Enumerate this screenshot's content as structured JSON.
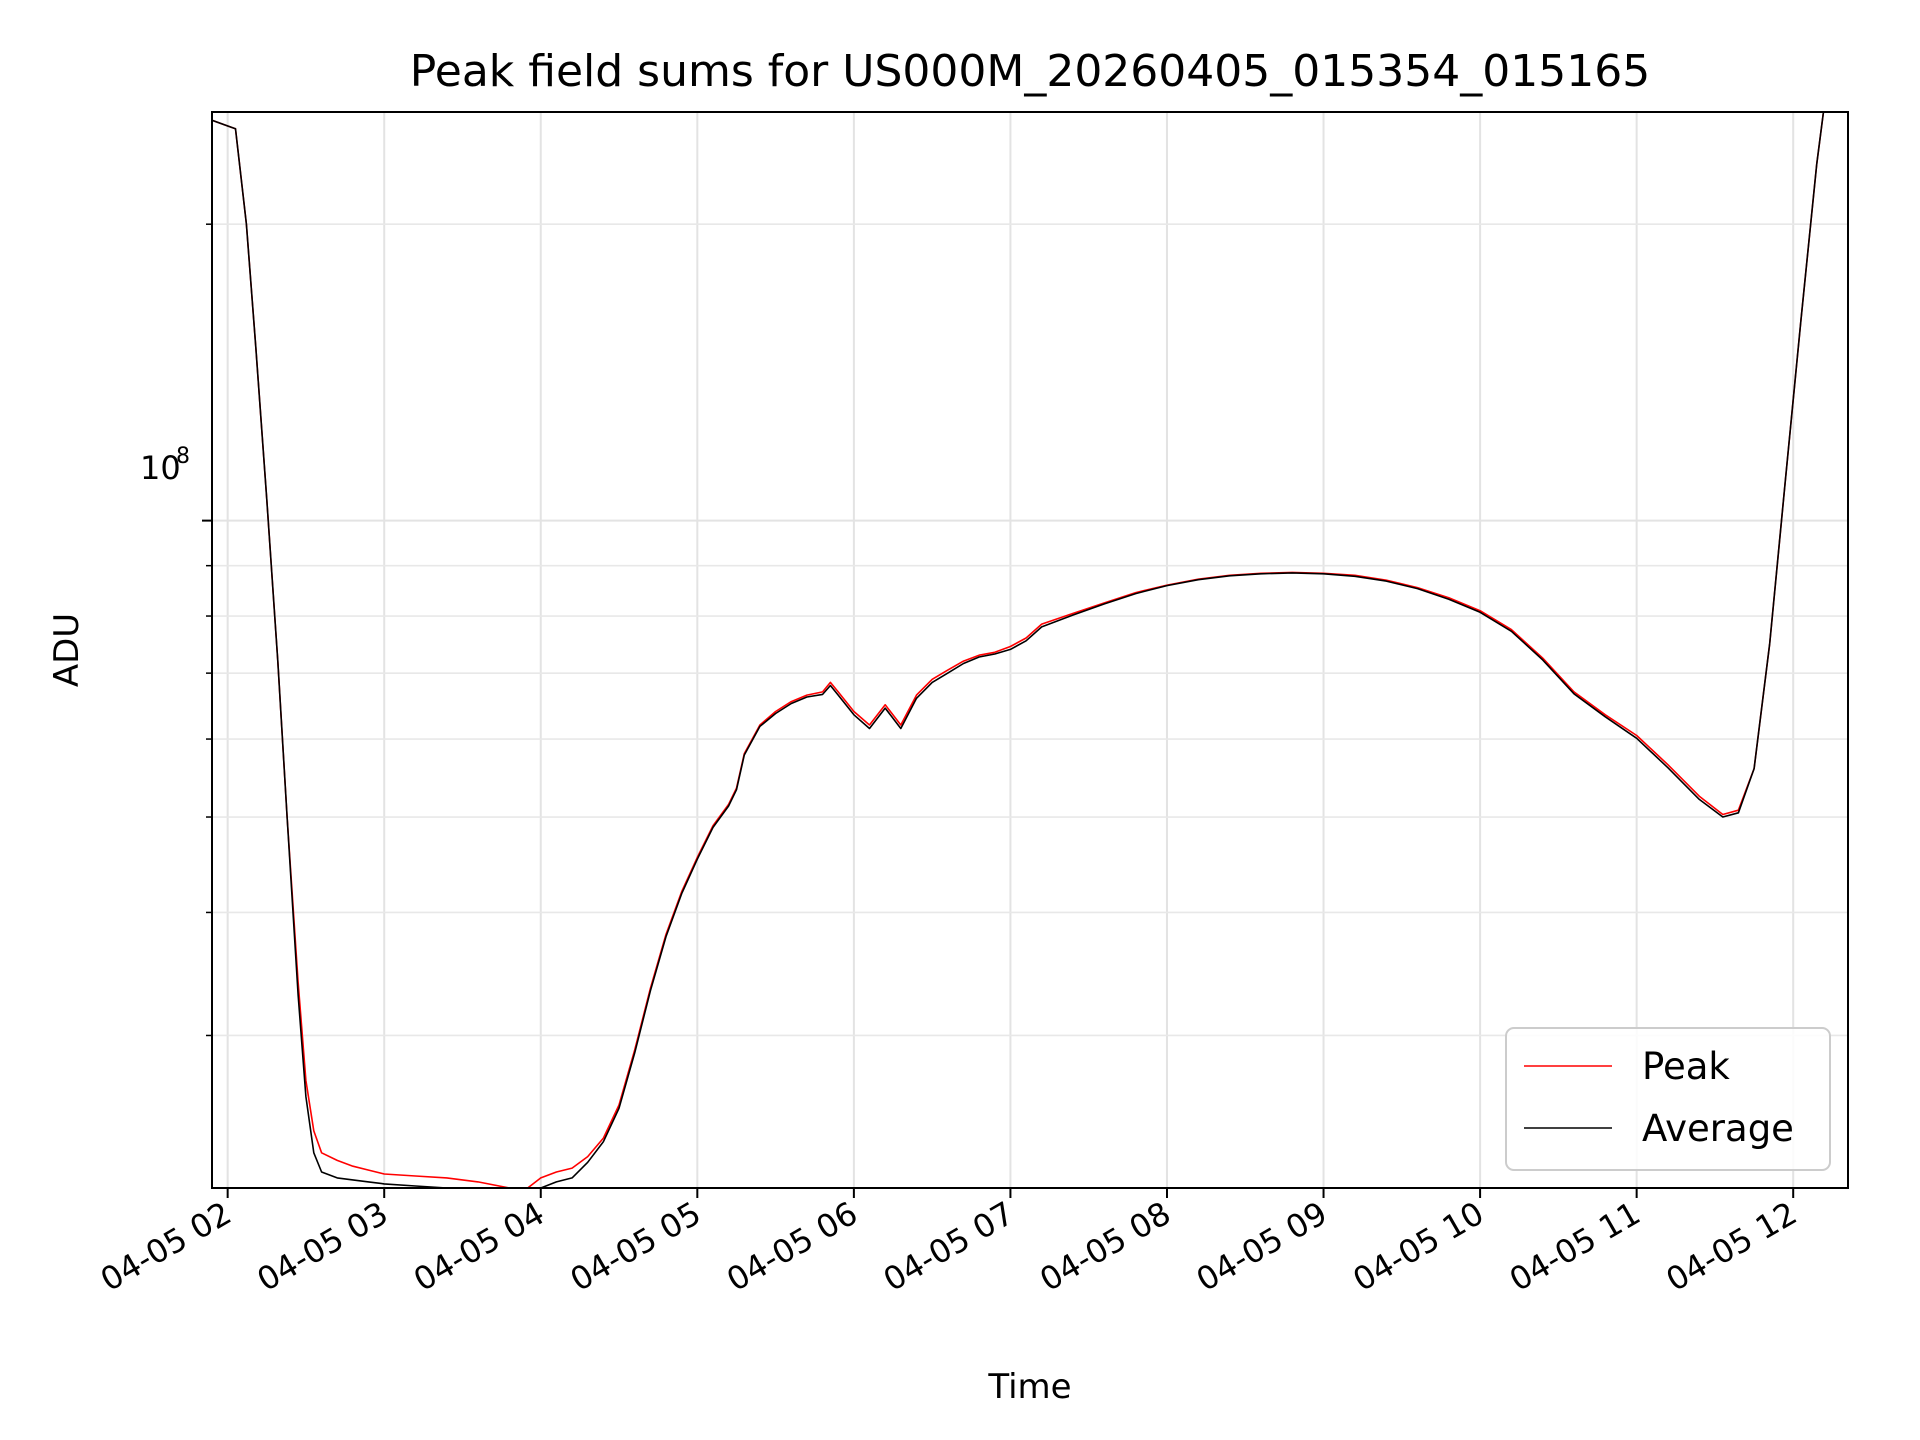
{
  "chart_data": {
    "type": "line",
    "title": "Peak field sums for US000M_20260405_015354_015165",
    "xlabel": "Time",
    "ylabel": "ADU",
    "x_unit": "hours",
    "xlim": [
      1.9,
      12.35
    ],
    "yscale": "log",
    "ylim": [
      21000000,
      260000000
    ],
    "grid": true,
    "legend_position": "lower-right",
    "x_ticks": [
      {
        "value": 2,
        "label": "04-05 02"
      },
      {
        "value": 3,
        "label": "04-05 03"
      },
      {
        "value": 4,
        "label": "04-05 04"
      },
      {
        "value": 5,
        "label": "04-05 05"
      },
      {
        "value": 6,
        "label": "04-05 06"
      },
      {
        "value": 7,
        "label": "04-05 07"
      },
      {
        "value": 8,
        "label": "04-05 08"
      },
      {
        "value": 9,
        "label": "04-05 09"
      },
      {
        "value": 10,
        "label": "04-05 10"
      },
      {
        "value": 11,
        "label": "04-05 11"
      },
      {
        "value": 12,
        "label": "04-05 12"
      }
    ],
    "y_major_tick": {
      "value": 100000000,
      "base": "10",
      "exp": "8"
    },
    "y_minor_ticks": [
      30000000,
      40000000,
      50000000,
      60000000,
      70000000,
      80000000,
      90000000,
      200000000
    ],
    "series": [
      {
        "name": "Peak",
        "color": "#ff0000",
        "x": [
          1.9,
          2.05,
          2.12,
          2.18,
          2.25,
          2.32,
          2.38,
          2.45,
          2.5,
          2.55,
          2.6,
          2.7,
          2.8,
          2.9,
          3.0,
          3.2,
          3.4,
          3.6,
          3.8,
          3.9,
          4.0,
          4.1,
          4.2,
          4.3,
          4.4,
          4.5,
          4.6,
          4.7,
          4.8,
          4.9,
          5.0,
          5.1,
          5.2,
          5.25,
          5.3,
          5.4,
          5.5,
          5.6,
          5.7,
          5.8,
          5.85,
          5.9,
          6.0,
          6.1,
          6.2,
          6.3,
          6.4,
          6.5,
          6.6,
          6.7,
          6.8,
          6.9,
          7.0,
          7.1,
          7.2,
          7.4,
          7.6,
          7.8,
          8.0,
          8.2,
          8.4,
          8.6,
          8.8,
          9.0,
          9.2,
          9.4,
          9.6,
          9.8,
          10.0,
          10.2,
          10.4,
          10.6,
          10.8,
          11.0,
          11.2,
          11.4,
          11.55,
          11.65,
          11.75,
          11.85,
          11.95,
          12.05,
          12.15,
          12.2
        ],
        "y": [
          255000000,
          250000000,
          200000000,
          150000000,
          105000000,
          72000000,
          50000000,
          34000000,
          27000000,
          24000000,
          22800000,
          22400000,
          22100000,
          21900000,
          21700000,
          21600000,
          21500000,
          21300000,
          21000000,
          20900000,
          21500000,
          21800000,
          22000000,
          22600000,
          23600000,
          25500000,
          29000000,
          33500000,
          38000000,
          42000000,
          45500000,
          49000000,
          51500000,
          53500000,
          58000000,
          62000000,
          64000000,
          65500000,
          66500000,
          67000000,
          68500000,
          67000000,
          64000000,
          62000000,
          65000000,
          62000000,
          66500000,
          69000000,
          70500000,
          72000000,
          73000000,
          73500000,
          74500000,
          76000000,
          78500000,
          80500000,
          82500000,
          84500000,
          86000000,
          87200000,
          88000000,
          88400000,
          88600000,
          88400000,
          88000000,
          87000000,
          85500000,
          83500000,
          81000000,
          77500000,
          72500000,
          67000000,
          63500000,
          60500000,
          56500000,
          52500000,
          50300000,
          50800000,
          56000000,
          75000000,
          110000000,
          160000000,
          230000000,
          265000000
        ]
      },
      {
        "name": "Average",
        "color": "#000000",
        "x": [
          1.9,
          2.05,
          2.12,
          2.18,
          2.25,
          2.32,
          2.38,
          2.45,
          2.5,
          2.55,
          2.6,
          2.7,
          2.8,
          2.9,
          3.0,
          3.2,
          3.4,
          3.6,
          3.8,
          3.9,
          4.0,
          4.1,
          4.2,
          4.3,
          4.4,
          4.5,
          4.6,
          4.7,
          4.8,
          4.9,
          5.0,
          5.1,
          5.2,
          5.25,
          5.3,
          5.4,
          5.5,
          5.6,
          5.7,
          5.8,
          5.85,
          5.9,
          6.0,
          6.1,
          6.2,
          6.3,
          6.4,
          6.5,
          6.6,
          6.7,
          6.8,
          6.9,
          7.0,
          7.1,
          7.2,
          7.4,
          7.6,
          7.8,
          8.0,
          8.2,
          8.4,
          8.6,
          8.8,
          9.0,
          9.2,
          9.4,
          9.6,
          9.8,
          10.0,
          10.2,
          10.4,
          10.6,
          10.8,
          11.0,
          11.2,
          11.4,
          11.55,
          11.65,
          11.75,
          11.85,
          11.95,
          12.05,
          12.15,
          12.2
        ],
        "y": [
          255000000,
          250000000,
          200000000,
          150000000,
          105000000,
          72000000,
          50000000,
          33000000,
          26000000,
          22800000,
          21800000,
          21500000,
          21400000,
          21300000,
          21200000,
          21100000,
          21000000,
          20800000,
          20600000,
          20500000,
          21000000,
          21300000,
          21500000,
          22300000,
          23400000,
          25300000,
          28800000,
          33300000,
          37800000,
          41800000,
          45300000,
          48800000,
          51300000,
          53300000,
          57800000,
          61800000,
          63700000,
          65200000,
          66200000,
          66600000,
          68000000,
          66500000,
          63500000,
          61500000,
          64500000,
          61500000,
          66000000,
          68500000,
          70000000,
          71600000,
          72700000,
          73200000,
          74000000,
          75500000,
          78000000,
          80200000,
          82300000,
          84300000,
          85900000,
          87100000,
          87900000,
          88300000,
          88500000,
          88300000,
          87800000,
          86800000,
          85300000,
          83200000,
          80700000,
          77200000,
          72200000,
          66700000,
          63200000,
          60100000,
          56100000,
          52100000,
          50000000,
          50500000,
          56000000,
          75000000,
          110000000,
          160000000,
          230000000,
          265000000
        ]
      }
    ],
    "legend": [
      {
        "label": "Peak",
        "color": "#ff0000"
      },
      {
        "label": "Average",
        "color": "#000000"
      }
    ]
  }
}
